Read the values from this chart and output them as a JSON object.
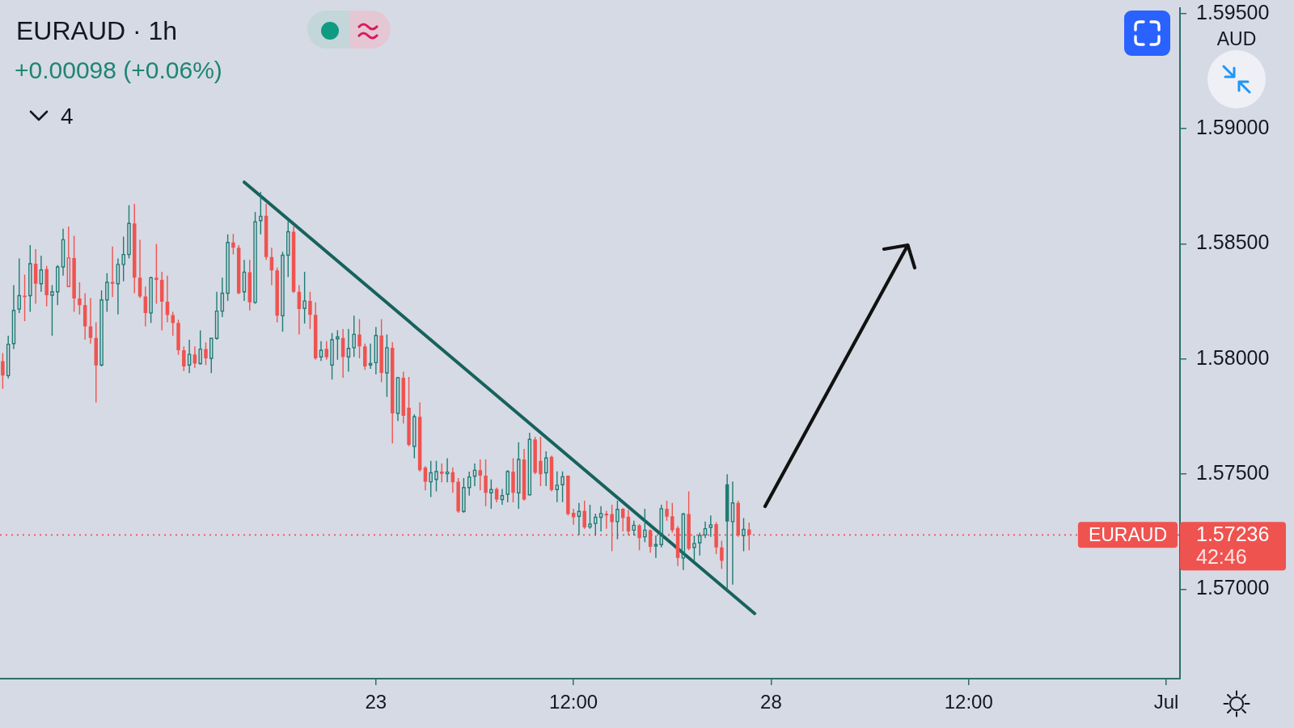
{
  "chart_data": {
    "type": "candlestick",
    "title": "EURAUD · 1h",
    "subtitle": "+0.00098 (+0.06%)",
    "ylabel": "AUD",
    "annotations": [
      "4",
      "1.57236",
      "42:46"
    ],
    "categories": [
      null,
      null,
      null,
      null,
      null,
      null,
      null,
      null,
      null,
      null,
      null,
      null,
      null,
      null,
      null,
      null,
      null,
      null,
      null,
      null,
      null,
      null,
      null,
      null,
      null,
      null,
      null,
      null,
      null,
      null,
      null,
      null,
      null,
      null,
      null,
      null,
      null,
      null,
      null,
      null,
      null,
      null,
      null,
      null,
      null,
      null,
      null,
      null,
      null,
      null,
      null,
      null,
      null,
      null,
      null,
      null,
      null,
      null,
      null,
      null,
      null,
      null,
      null,
      null,
      null,
      null,
      null,
      null,
      "23",
      null,
      null,
      null,
      null,
      null,
      null,
      null,
      null,
      null,
      null,
      null,
      null,
      null,
      null,
      null,
      null,
      null,
      null,
      null,
      null,
      null,
      null,
      null,
      null,
      null,
      null,
      null,
      null,
      null,
      null,
      null,
      null,
      null,
      null,
      null,
      "12:00",
      null,
      null,
      null,
      null,
      null,
      null,
      null,
      null,
      null,
      null,
      null,
      null,
      null,
      null,
      null,
      null,
      null,
      null,
      null,
      null,
      null,
      null,
      null,
      null,
      null,
      null,
      null,
      null,
      null,
      null,
      null,
      null,
      null,
      null,
      null,
      "28",
      null,
      null,
      null,
      null,
      null,
      null,
      null,
      null,
      null,
      null,
      null,
      null,
      null,
      null,
      null,
      null,
      null,
      null,
      null,
      null,
      null,
      null,
      null,
      null,
      null,
      null,
      null,
      null,
      null,
      null,
      null,
      null,
      null,
      null,
      null,
      "12:00",
      null,
      null,
      null,
      null,
      null,
      null,
      null,
      null,
      null,
      null,
      null,
      null,
      null,
      null,
      null,
      null,
      null,
      null,
      null,
      null,
      null,
      null,
      null,
      null,
      null,
      null,
      null,
      null,
      null,
      null,
      null,
      null,
      null,
      null,
      null,
      "Jul",
      null,
      null
    ],
    "ohlc": [
      [
        1.57991,
        1.58026,
        1.5787,
        1.57928
      ],
      [
        1.57928,
        1.58101,
        1.57916,
        1.58064
      ],
      [
        1.58067,
        1.58321,
        1.58043,
        1.58211
      ],
      [
        1.58217,
        1.58437,
        1.582,
        1.58275
      ],
      [
        1.58275,
        1.58367,
        1.58165,
        1.58269
      ],
      [
        1.58275,
        1.58495,
        1.58205,
        1.58414
      ],
      [
        1.58414,
        1.58477,
        1.5824,
        1.58327
      ],
      [
        1.58327,
        1.58448,
        1.58292,
        1.58387
      ],
      [
        1.5839,
        1.58404,
        1.58229,
        1.58277
      ],
      [
        1.58277,
        1.58321,
        1.58101,
        1.58292
      ],
      [
        1.58292,
        1.58408,
        1.58234,
        1.584
      ],
      [
        1.584,
        1.58566,
        1.58362,
        1.58518
      ],
      [
        1.58315,
        1.58576,
        1.58315,
        1.58439
      ],
      [
        1.58439,
        1.58535,
        1.58205,
        1.58263
      ],
      [
        1.58263,
        1.58333,
        1.58194,
        1.58234
      ],
      [
        1.58234,
        1.58286,
        1.58084,
        1.58142
      ],
      [
        1.58142,
        1.58265,
        1.58067,
        1.58092
      ],
      [
        1.58092,
        1.58159,
        1.57812,
        1.57972
      ],
      [
        1.57974,
        1.58298,
        1.57968,
        1.58257
      ],
      [
        1.58257,
        1.58373,
        1.58205,
        1.58333
      ],
      [
        1.58335,
        1.58489,
        1.58269,
        1.58327
      ],
      [
        1.58327,
        1.58437,
        1.58194,
        1.58411
      ],
      [
        1.58411,
        1.58532,
        1.58338,
        1.58454
      ],
      [
        1.58454,
        1.58668,
        1.58437,
        1.58589
      ],
      [
        1.58589,
        1.58674,
        1.58286,
        1.58353
      ],
      [
        1.58353,
        1.58518,
        1.58265,
        1.58272
      ],
      [
        1.58272,
        1.58315,
        1.58142,
        1.582
      ],
      [
        1.582,
        1.58358,
        1.58157,
        1.58353
      ],
      [
        1.58353,
        1.585,
        1.5824,
        1.58344
      ],
      [
        1.58344,
        1.58379,
        1.58124,
        1.58249
      ],
      [
        1.58249,
        1.58362,
        1.58159,
        1.58191
      ],
      [
        1.58191,
        1.58205,
        1.58101,
        1.58157
      ],
      [
        1.58157,
        1.58171,
        1.58018,
        1.58038
      ],
      [
        1.58038,
        1.58055,
        1.57948,
        1.57968
      ],
      [
        1.57974,
        1.58084,
        1.57939,
        1.5802
      ],
      [
        1.5802,
        1.58055,
        1.57962,
        1.5798
      ],
      [
        1.5798,
        1.58124,
        1.57976,
        1.58043
      ],
      [
        1.58043,
        1.58072,
        1.57974,
        1.58003
      ],
      [
        1.58003,
        1.58092,
        1.57939,
        1.5809
      ],
      [
        1.5809,
        1.58292,
        1.58084,
        1.58208
      ],
      [
        1.58208,
        1.58353,
        1.58182,
        1.58286
      ],
      [
        1.58286,
        1.58541,
        1.58252,
        1.58506
      ],
      [
        1.58506,
        1.58543,
        1.58454,
        1.58483
      ],
      [
        1.58483,
        1.58495,
        1.58281,
        1.58286
      ],
      [
        1.58292,
        1.58431,
        1.58252,
        1.58377
      ],
      [
        1.58377,
        1.58431,
        1.58211,
        1.58246
      ],
      [
        1.58246,
        1.58639,
        1.5824,
        1.58596
      ],
      [
        1.58601,
        1.58726,
        1.58541,
        1.5862
      ],
      [
        1.58622,
        1.58674,
        1.58431,
        1.58443
      ],
      [
        1.58443,
        1.58483,
        1.58321,
        1.58385
      ],
      [
        1.58385,
        1.58397,
        1.58159,
        1.58188
      ],
      [
        1.58188,
        1.58466,
        1.58119,
        1.58451
      ],
      [
        1.58451,
        1.58599,
        1.58356,
        1.58553
      ],
      [
        1.58553,
        1.58576,
        1.58287,
        1.58292
      ],
      [
        1.58292,
        1.58321,
        1.58107,
        1.58217
      ],
      [
        1.5822,
        1.58379,
        1.58154,
        1.58252
      ],
      [
        1.58252,
        1.58292,
        1.5813,
        1.58192
      ],
      [
        1.58192,
        1.58246,
        1.57997,
        1.58003
      ],
      [
        1.58009,
        1.58078,
        1.57992,
        1.58038
      ],
      [
        1.58044,
        1.58078,
        1.57997,
        1.58007
      ],
      [
        1.57974,
        1.58113,
        1.57911,
        1.58084
      ],
      [
        1.58088,
        1.58125,
        1.57997,
        1.58096
      ],
      [
        1.58092,
        1.5813,
        1.57919,
        1.58009
      ],
      [
        1.58009,
        1.5813,
        1.57945,
        1.58046
      ],
      [
        1.58049,
        1.58188,
        1.58009,
        1.58107
      ],
      [
        1.58107,
        1.58173,
        1.58003,
        1.58055
      ],
      [
        1.58055,
        1.58067,
        1.57953,
        1.57968
      ],
      [
        1.57974,
        1.58067,
        1.57957,
        1.5798
      ],
      [
        1.57984,
        1.58139,
        1.57934,
        1.58102
      ],
      [
        1.58102,
        1.58173,
        1.57899,
        1.5794
      ],
      [
        1.5794,
        1.58107,
        1.57835,
        1.58049
      ],
      [
        1.58049,
        1.58073,
        1.57633,
        1.57764
      ],
      [
        1.57764,
        1.57922,
        1.57731,
        1.57919
      ],
      [
        1.57919,
        1.57945,
        1.5772,
        1.57754
      ],
      [
        1.57789,
        1.57922,
        1.57621,
        1.57627
      ],
      [
        1.57621,
        1.5776,
        1.57569,
        1.57749
      ],
      [
        1.57749,
        1.57812,
        1.57511,
        1.57517
      ],
      [
        1.57529,
        1.57535,
        1.5743,
        1.57467
      ],
      [
        1.57467,
        1.57558,
        1.57401,
        1.57506
      ],
      [
        1.57477,
        1.57558,
        1.57425,
        1.57511
      ],
      [
        1.57511,
        1.57546,
        1.57465,
        1.57502
      ],
      [
        1.57502,
        1.57569,
        1.57465,
        1.57509
      ],
      [
        1.57509,
        1.57529,
        1.57419,
        1.57465
      ],
      [
        1.57467,
        1.57483,
        1.57332,
        1.57338
      ],
      [
        1.57338,
        1.57483,
        1.57332,
        1.57442
      ],
      [
        1.57442,
        1.57511,
        1.57407,
        1.57488
      ],
      [
        1.57491,
        1.57546,
        1.57448,
        1.57517
      ],
      [
        1.57517,
        1.57564,
        1.5743,
        1.57494
      ],
      [
        1.57494,
        1.57564,
        1.57361,
        1.57419
      ],
      [
        1.57419,
        1.57477,
        1.5735,
        1.57433
      ],
      [
        1.57436,
        1.57442,
        1.57378,
        1.5739
      ],
      [
        1.5739,
        1.57436,
        1.57367,
        1.57407
      ],
      [
        1.57413,
        1.57517,
        1.57378,
        1.57511
      ],
      [
        1.57511,
        1.57569,
        1.57378,
        1.57419
      ],
      [
        1.57419,
        1.57639,
        1.5735,
        1.57564
      ],
      [
        1.57564,
        1.5761,
        1.57385,
        1.5739
      ],
      [
        1.5741,
        1.5768,
        1.57408,
        1.57651
      ],
      [
        1.57651,
        1.57662,
        1.575,
        1.57506
      ],
      [
        1.57558,
        1.57662,
        1.57448,
        1.575
      ],
      [
        1.57506,
        1.57599,
        1.57448,
        1.5757
      ],
      [
        1.57575,
        1.57581,
        1.57425,
        1.57431
      ],
      [
        1.57433,
        1.57512,
        1.57379,
        1.57452
      ],
      [
        1.57454,
        1.57512,
        1.57379,
        1.57489
      ],
      [
        1.57494,
        1.57494,
        1.57321,
        1.57327
      ],
      [
        1.57332,
        1.5735,
        1.5728,
        1.57313
      ],
      [
        1.57317,
        1.57375,
        1.57236,
        1.57338
      ],
      [
        1.57341,
        1.57385,
        1.57263,
        1.57269
      ],
      [
        1.57271,
        1.57367,
        1.57263,
        1.57283
      ],
      [
        1.57286,
        1.57329,
        1.57234,
        1.57313
      ],
      [
        1.57313,
        1.57361,
        1.57251,
        1.57329
      ],
      [
        1.57329,
        1.57341,
        1.57263,
        1.57321
      ],
      [
        1.57327,
        1.57367,
        1.57165,
        1.57292
      ],
      [
        1.57294,
        1.57385,
        1.57217,
        1.57347
      ],
      [
        1.5735,
        1.57352,
        1.57251,
        1.57309
      ],
      [
        1.57315,
        1.57344,
        1.57234,
        1.57251
      ],
      [
        1.57257,
        1.57298,
        1.57234,
        1.57278
      ],
      [
        1.57278,
        1.57283,
        1.5717,
        1.57222
      ],
      [
        1.57228,
        1.5735,
        1.57205,
        1.57257
      ],
      [
        1.57257,
        1.5726,
        1.57159,
        1.57185
      ],
      [
        1.57188,
        1.57234,
        1.57136,
        1.57194
      ],
      [
        1.57194,
        1.57367,
        1.57182,
        1.5735
      ],
      [
        1.5735,
        1.57385,
        1.57298,
        1.57315
      ],
      [
        1.57317,
        1.57375,
        1.57246,
        1.57257
      ],
      [
        1.57266,
        1.57275,
        1.57101,
        1.57136
      ],
      [
        1.57136,
        1.57332,
        1.57084,
        1.57327
      ],
      [
        1.57327,
        1.57425,
        1.5717,
        1.57176
      ],
      [
        1.57182,
        1.57234,
        1.57124,
        1.57199
      ],
      [
        1.57202,
        1.57246,
        1.57147,
        1.57234
      ],
      [
        1.57236,
        1.57294,
        1.57222,
        1.57263
      ],
      [
        1.57269,
        1.57321,
        1.57228,
        1.5728
      ],
      [
        1.57283,
        1.57292,
        1.57153,
        1.57182
      ],
      [
        1.57182,
        1.57211,
        1.57089,
        1.57124
      ],
      [
        1.57456,
        1.575,
        1.56997,
        1.57294
      ],
      [
        1.57294,
        1.57468,
        1.5702,
        1.57375
      ],
      [
        1.57375,
        1.57385,
        1.57228,
        1.57234
      ],
      [
        1.57234,
        1.57309,
        1.57165,
        1.5726
      ],
      [
        1.5726,
        1.5729,
        1.5717,
        1.57236
      ],
      null,
      null,
      null,
      null,
      null,
      null,
      null,
      null,
      null,
      null,
      null,
      null,
      null,
      null,
      null,
      null,
      null,
      null,
      null,
      null,
      null,
      null,
      null,
      null,
      null,
      null,
      null,
      null,
      null,
      null,
      null,
      null,
      null,
      null,
      null,
      null,
      null,
      null,
      null,
      null,
      null,
      null,
      null,
      null,
      null,
      null,
      null,
      null,
      null,
      null,
      null,
      null,
      null,
      null,
      null,
      null,
      null,
      null,
      null,
      null,
      null,
      null,
      null,
      null,
      null,
      null,
      null,
      null,
      null,
      null,
      null,
      null,
      null,
      null,
      null,
      null,
      null,
      null
    ],
    "colors": [
      "#ef5350",
      "#1f7c74",
      "#1f7c74",
      "#1f7c74",
      "#ef5350",
      "#1f7c74",
      "#ef5350",
      "#1f7c74",
      "#ef5350",
      "#1f7c74",
      "#1f7c74",
      "#1f7c74",
      "#ef5350",
      "#ef5350",
      "#ef5350",
      "#ef5350",
      "#ef5350",
      "#ef5350",
      "#1f7c74",
      "#1f7c74",
      "#ef5350",
      "#1f7c74",
      "#1f7c74",
      "#1f7c74",
      "#ef5350",
      "#ef5350",
      "#ef5350",
      "#1f7c74",
      "#ef5350",
      "#ef5350",
      "#ef5350",
      "#ef5350",
      "#ef5350",
      "#ef5350",
      "#1f7c74",
      "#ef5350",
      "#1f7c74",
      "#ef5350",
      "#1f7c74",
      "#1f7c74",
      "#1f7c74",
      "#1f7c74",
      "#ef5350",
      "#ef5350",
      "#1f7c74",
      "#ef5350",
      "#1f7c74",
      "#1f7c74",
      "#ef5350",
      "#ef5350",
      "#ef5350",
      "#1f7c74",
      "#1f7c74",
      "#ef5350",
      "#ef5350",
      "#1f7c74",
      "#ef5350",
      "#ef5350",
      "#1f7c74",
      "#ef5350",
      "#1f7c74",
      "#1f7c74",
      "#ef5350",
      "#1f7c74",
      "#1f7c74",
      "#ef5350",
      "#ef5350",
      "#1f7c74",
      "#1f7c74",
      "#ef5350",
      "#1f7c74",
      "#ef5350",
      "#1f7c74",
      "#ef5350",
      "#ef5350",
      "#1f7c74",
      "#ef5350",
      "#ef5350",
      "#1f7c74",
      "#1f7c74",
      "#ef5350",
      "#1f7c74",
      "#ef5350",
      "#ef5350",
      "#1f7c74",
      "#1f7c74",
      "#1f7c74",
      "#ef5350",
      "#ef5350",
      "#1f7c74",
      "#ef5350",
      "#1f7c74",
      "#1f7c74",
      "#ef5350",
      "#1f7c74",
      "#ef5350",
      "#1f7c74",
      "#ef5350",
      "#ef5350",
      "#1f7c74",
      "#ef5350",
      "#1f7c74",
      "#1f7c74",
      "#ef5350",
      "#ef5350",
      "#1f7c74",
      "#ef5350",
      "#1f7c74",
      "#1f7c74",
      "#1f7c74",
      "#ef5350",
      "#ef5350",
      "#1f7c74",
      "#ef5350",
      "#ef5350",
      "#1f7c74",
      "#ef5350",
      "#1f7c74",
      "#ef5350",
      "#1f7c74",
      "#1f7c74",
      "#ef5350",
      "#ef5350",
      "#ef5350",
      "#1f7c74",
      "#ef5350",
      "#1f7c74",
      "#1f7c74",
      "#1f7c74",
      "#1f7c74",
      "#ef5350",
      "#ef5350",
      "#1f7c74",
      "#1f7c74",
      "#ef5350",
      "#1f7c74",
      "#ef5350",
      null,
      null,
      null,
      null,
      null,
      null,
      null,
      null,
      null,
      null,
      null,
      null,
      null,
      null,
      null,
      null,
      null,
      null,
      null,
      null,
      null,
      null,
      null,
      null,
      null,
      null,
      null,
      null,
      null,
      null,
      null,
      null,
      null,
      null,
      null,
      null,
      null,
      null,
      null,
      null,
      null,
      null,
      null,
      null,
      null,
      null,
      null,
      null,
      null,
      null,
      null,
      null,
      null,
      null,
      null,
      null,
      null,
      null,
      null,
      null,
      null,
      null,
      null,
      null,
      null,
      null,
      null,
      null,
      null,
      null,
      null,
      null,
      null,
      null,
      null,
      null,
      null,
      null
    ],
    "series": [
      {
        "type": "line",
        "color": "#17625d",
        "values": [
          null,
          null,
          null,
          null,
          null,
          null,
          null,
          null,
          null,
          null,
          null,
          null,
          null,
          null,
          null,
          null,
          null,
          null,
          null,
          null,
          null,
          null,
          null,
          null,
          null,
          null,
          null,
          null,
          null,
          null,
          null,
          null,
          null,
          null,
          null,
          null,
          null,
          null,
          null,
          null,
          null,
          null,
          null,
          null,
          1.58768,
          null,
          null,
          null,
          null,
          null,
          null,
          null,
          null,
          null,
          null,
          null,
          null,
          null,
          null,
          null,
          null,
          null,
          null,
          null,
          null,
          null,
          null,
          null,
          null,
          null,
          null,
          null,
          null,
          null,
          null,
          null,
          null,
          null,
          null,
          null,
          null,
          null,
          null,
          null,
          null,
          null,
          null,
          null,
          null,
          null,
          null,
          null,
          null,
          null,
          null,
          null,
          null,
          null,
          null,
          null,
          null,
          null,
          null,
          null,
          null,
          null,
          null,
          null,
          null,
          null,
          null,
          null,
          null,
          null,
          null,
          null,
          null,
          null,
          null,
          null,
          null,
          null,
          null,
          null,
          null,
          null,
          null,
          null,
          null,
          null,
          null,
          null,
          null,
          null,
          null,
          null,
          null,
          1.56895,
          null,
          null,
          null,
          null,
          null,
          null,
          null,
          null,
          null,
          null,
          null,
          null,
          null,
          null,
          null,
          null,
          null,
          null,
          null,
          null,
          null,
          null,
          null,
          null,
          null,
          null,
          null,
          null,
          null,
          null,
          null,
          null,
          null,
          null,
          null,
          null,
          null,
          null,
          null,
          null,
          null,
          null,
          null,
          null,
          null,
          null,
          null,
          null,
          null,
          null,
          null,
          null,
          null,
          null,
          null,
          null,
          null,
          null,
          null,
          null,
          null,
          null,
          null,
          null,
          null,
          null,
          null,
          null,
          null,
          null,
          null,
          null,
          null,
          null,
          null,
          null,
          null
        ]
      }
    ],
    "ylim": [
      1.56612,
      1.59524
    ],
    "yticks": [
      {
        "value": 1.57,
        "label": "1.57000"
      },
      {
        "value": 1.575,
        "label": "1.57500"
      },
      {
        "value": 1.58,
        "label": "1.58000"
      },
      {
        "value": 1.585,
        "label": "1.58500"
      },
      {
        "value": 1.59,
        "label": "1.59000"
      },
      {
        "value": 1.595,
        "label": "1.59500"
      }
    ],
    "ref_lines": [
      {
        "axis": "y",
        "value": 1.57236,
        "label": "EURAUD",
        "color": "#ef5350",
        "line_style": "dotted"
      }
    ]
  }
}
